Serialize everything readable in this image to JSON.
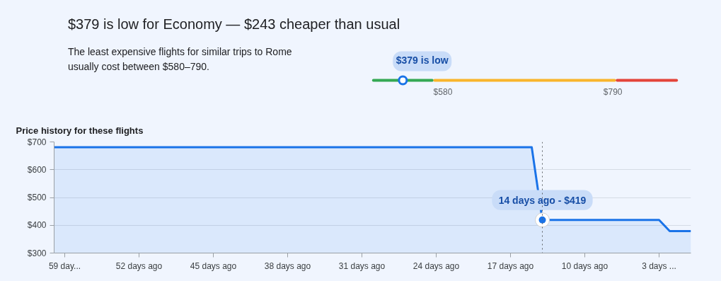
{
  "chart_data": [
    {
      "type": "other",
      "title": "$379 is low for Economy — $243 cheaper than usual",
      "subtitle": "The least expensive flights for similar trips to Rome usually cost between $580–790.",
      "annotations": [
        "$379 is low",
        "$580",
        "$790"
      ],
      "colors": [
        "#34a853",
        "#f9b52c",
        "#e4443a"
      ]
    },
    {
      "type": "area",
      "title": "Price history for these flights",
      "x": [
        60,
        15,
        14,
        3,
        2,
        0
      ],
      "series": [
        {
          "color": "#1a73e8",
          "values": [
            681,
            681,
            419,
            419,
            379,
            379
          ]
        }
      ],
      "xlim": [
        60,
        0
      ],
      "ylim": [
        300,
        700
      ],
      "xticks": [
        {
          "value": 59,
          "label": "59 day..."
        },
        {
          "value": 52,
          "label": "52 days ago"
        },
        {
          "value": 45,
          "label": "45 days ago"
        },
        {
          "value": 38,
          "label": "38 days ago"
        },
        {
          "value": 31,
          "label": "31 days ago"
        },
        {
          "value": 24,
          "label": "24 days ago"
        },
        {
          "value": 17,
          "label": "17 days ago"
        },
        {
          "value": 10,
          "label": "10 days ago"
        },
        {
          "value": 3,
          "label": "3 days ..."
        }
      ],
      "yticks": [
        {
          "value": 300,
          "label": "$300"
        },
        {
          "value": 400,
          "label": "$400"
        },
        {
          "value": 500,
          "label": "$500"
        },
        {
          "value": 600,
          "label": "$600"
        },
        {
          "value": 700,
          "label": "$700"
        }
      ],
      "grid": "y",
      "ref_lines": [
        {
          "axis": "x",
          "value": 14,
          "label": null,
          "line_style": "dotted",
          "color": "#5f6368"
        }
      ],
      "annotations": [
        {
          "text": "14 days ago - $419",
          "x": 14,
          "y": 419
        }
      ]
    }
  ]
}
